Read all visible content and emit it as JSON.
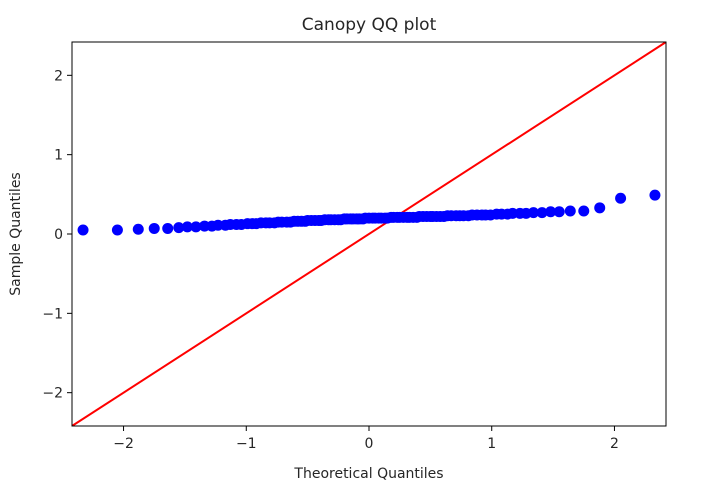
{
  "chart_data": {
    "type": "scatter",
    "title": "Canopy QQ plot",
    "xlabel": "Theoretical Quantiles",
    "ylabel": "Sample Quantiles",
    "xlim": [
      -2.42,
      2.42
    ],
    "ylim": [
      -2.42,
      2.42
    ],
    "xticks": [
      -2,
      -1,
      0,
      1,
      2
    ],
    "xtick_labels": [
      "−2",
      "−1",
      "0",
      "1",
      "2"
    ],
    "yticks": [
      -2,
      -1,
      0,
      1,
      2
    ],
    "ytick_labels": [
      "−2",
      "−1",
      "0",
      "1",
      "2"
    ],
    "grid": false,
    "points_color": "#0000ff",
    "line_color": "#ff0000",
    "reference_line": {
      "x": [
        -2.42,
        2.42
      ],
      "y": [
        -2.42,
        2.42
      ]
    },
    "points": {
      "x": [
        -2.33,
        -2.05,
        -1.88,
        -1.75,
        -1.64,
        -1.55,
        -1.48,
        -1.41,
        -1.34,
        -1.28,
        -1.23,
        -1.17,
        -1.13,
        -1.08,
        -1.04,
        -0.99,
        -0.95,
        -0.92,
        -0.88,
        -0.84,
        -0.81,
        -0.77,
        -0.74,
        -0.71,
        -0.67,
        -0.64,
        -0.61,
        -0.58,
        -0.55,
        -0.52,
        -0.5,
        -0.47,
        -0.44,
        -0.41,
        -0.39,
        -0.36,
        -0.33,
        -0.31,
        -0.28,
        -0.25,
        -0.23,
        -0.2,
        -0.18,
        -0.15,
        -0.13,
        -0.1,
        -0.08,
        -0.05,
        -0.03,
        0.0,
        0.03,
        0.05,
        0.08,
        0.1,
        0.13,
        0.15,
        0.18,
        0.2,
        0.23,
        0.25,
        0.28,
        0.31,
        0.33,
        0.36,
        0.39,
        0.41,
        0.44,
        0.47,
        0.5,
        0.52,
        0.55,
        0.58,
        0.61,
        0.64,
        0.67,
        0.71,
        0.74,
        0.77,
        0.81,
        0.84,
        0.88,
        0.92,
        0.95,
        0.99,
        1.04,
        1.08,
        1.13,
        1.17,
        1.23,
        1.28,
        1.34,
        1.41,
        1.48,
        1.55,
        1.64,
        1.75,
        1.88,
        2.05,
        2.33
      ],
      "y": [
        0.05,
        0.05,
        0.06,
        0.07,
        0.07,
        0.08,
        0.09,
        0.09,
        0.1,
        0.1,
        0.11,
        0.11,
        0.12,
        0.12,
        0.12,
        0.13,
        0.13,
        0.13,
        0.14,
        0.14,
        0.14,
        0.14,
        0.15,
        0.15,
        0.15,
        0.15,
        0.16,
        0.16,
        0.16,
        0.16,
        0.17,
        0.17,
        0.17,
        0.17,
        0.17,
        0.18,
        0.18,
        0.18,
        0.18,
        0.18,
        0.18,
        0.19,
        0.19,
        0.19,
        0.19,
        0.19,
        0.19,
        0.19,
        0.2,
        0.2,
        0.2,
        0.2,
        0.2,
        0.2,
        0.2,
        0.2,
        0.21,
        0.21,
        0.21,
        0.21,
        0.21,
        0.21,
        0.21,
        0.21,
        0.21,
        0.22,
        0.22,
        0.22,
        0.22,
        0.22,
        0.22,
        0.22,
        0.22,
        0.23,
        0.23,
        0.23,
        0.23,
        0.23,
        0.23,
        0.24,
        0.24,
        0.24,
        0.24,
        0.24,
        0.25,
        0.25,
        0.25,
        0.26,
        0.26,
        0.26,
        0.27,
        0.27,
        0.28,
        0.28,
        0.29,
        0.29,
        0.33,
        0.45,
        0.49
      ]
    }
  }
}
